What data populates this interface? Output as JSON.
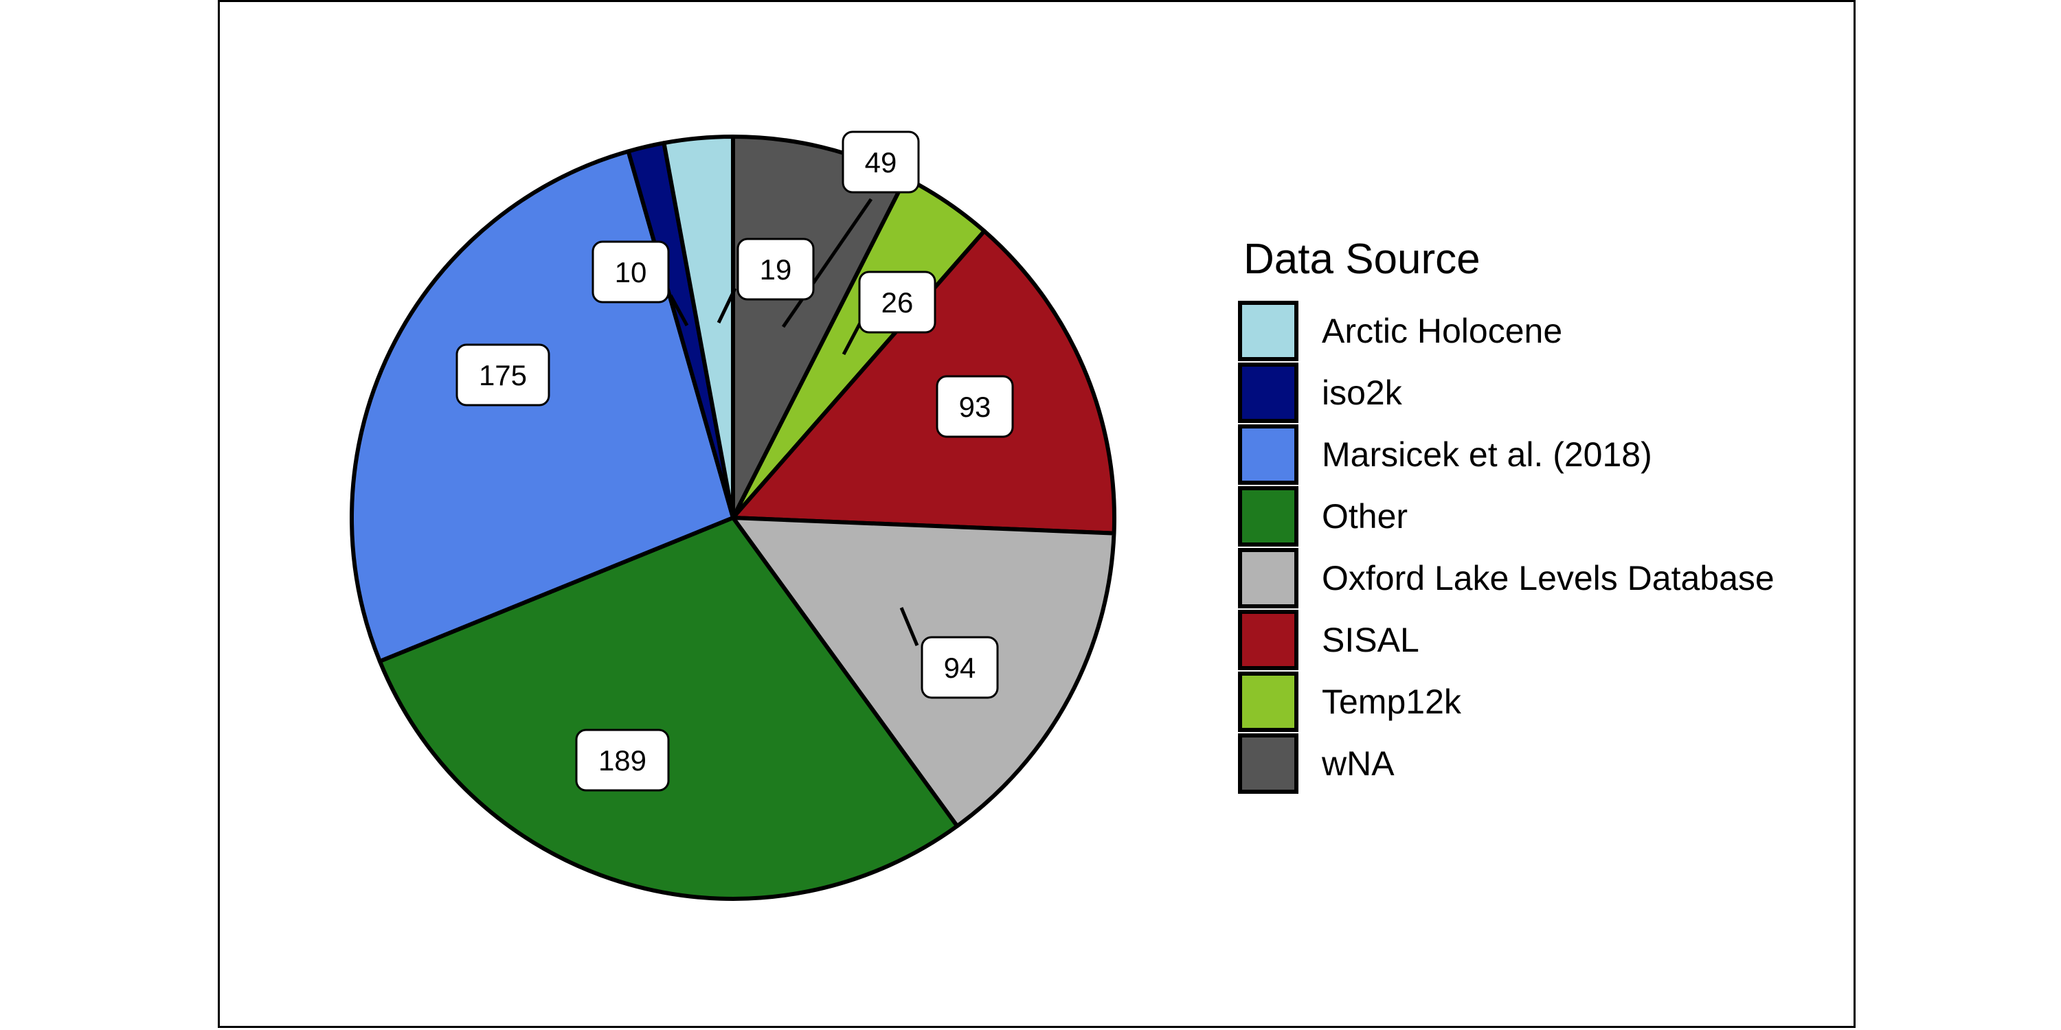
{
  "chart_data": {
    "type": "pie",
    "slices": [
      {
        "name": "wNA",
        "value": 49,
        "color": "#555555"
      },
      {
        "name": "Temp12k",
        "value": 26,
        "color": "#8cc42a"
      },
      {
        "name": "SISAL",
        "value": 93,
        "color": "#a0121c"
      },
      {
        "name": "Oxford Lake Levels Database",
        "value": 94,
        "color": "#b3b3b3"
      },
      {
        "name": "Other",
        "value": 189,
        "color": "#1e7b1e"
      },
      {
        "name": "Marsicek et al. (2018)",
        "value": 175,
        "color": "#5181e8"
      },
      {
        "name": "iso2k",
        "value": 10,
        "color": "#000c7e"
      },
      {
        "name": "Arctic Holocene",
        "value": 19,
        "color": "#a5d9e3"
      }
    ],
    "legend": {
      "title": "Data Source",
      "placement": "right",
      "entries": [
        {
          "label": "Arctic Holocene",
          "color": "#a5d9e3"
        },
        {
          "label": "iso2k",
          "color": "#000c7e"
        },
        {
          "label": "Marsicek et al. (2018)",
          "color": "#5181e8"
        },
        {
          "label": "Other",
          "color": "#1e7b1e"
        },
        {
          "label": "Oxford Lake Levels Database",
          "color": "#b3b3b3"
        },
        {
          "label": "SISAL",
          "color": "#a0121c"
        },
        {
          "label": "Temp12k",
          "color": "#8cc42a"
        },
        {
          "label": "wNA",
          "color": "#555555"
        }
      ]
    }
  }
}
